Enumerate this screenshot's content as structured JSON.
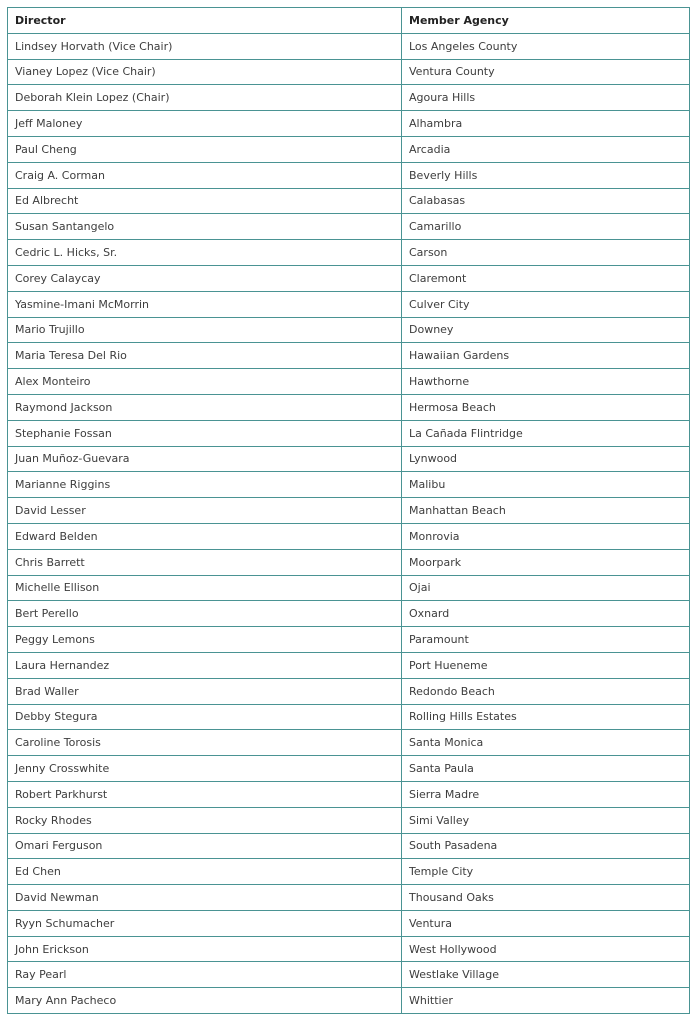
{
  "table": {
    "headers": [
      "Director",
      "Member Agency"
    ],
    "rows": [
      [
        "Lindsey Horvath (Vice Chair)",
        "Los Angeles County"
      ],
      [
        "Vianey Lopez (Vice Chair)",
        "Ventura County"
      ],
      [
        "Deborah Klein Lopez (Chair)",
        "Agoura Hills"
      ],
      [
        "Jeff Maloney",
        "Alhambra"
      ],
      [
        "Paul Cheng",
        "Arcadia"
      ],
      [
        "Craig A. Corman",
        "Beverly Hills"
      ],
      [
        "Ed Albrecht",
        "Calabasas"
      ],
      [
        "Susan Santangelo",
        "Camarillo"
      ],
      [
        "Cedric L. Hicks, Sr.",
        "Carson"
      ],
      [
        "Corey Calaycay",
        "Claremont"
      ],
      [
        "Yasmine-Imani McMorrin",
        "Culver City"
      ],
      [
        "Mario Trujillo",
        "Downey"
      ],
      [
        "Maria Teresa Del Rio",
        "Hawaiian Gardens"
      ],
      [
        "Alex Monteiro",
        "Hawthorne"
      ],
      [
        "Raymond Jackson",
        "Hermosa Beach"
      ],
      [
        "Stephanie Fossan",
        "La Cañada Flintridge"
      ],
      [
        "Juan Muñoz-Guevara",
        "Lynwood"
      ],
      [
        "Marianne Riggins",
        "Malibu"
      ],
      [
        "David Lesser",
        "Manhattan Beach"
      ],
      [
        "Edward Belden",
        "Monrovia"
      ],
      [
        "Chris Barrett",
        "Moorpark"
      ],
      [
        "Michelle Ellison",
        "Ojai"
      ],
      [
        "Bert Perello",
        "Oxnard"
      ],
      [
        "Peggy Lemons",
        "Paramount"
      ],
      [
        "Laura Hernandez",
        "Port Hueneme"
      ],
      [
        "Brad Waller",
        "Redondo Beach"
      ],
      [
        "Debby Stegura",
        "Rolling Hills Estates"
      ],
      [
        "Caroline Torosis",
        "Santa Monica"
      ],
      [
        "Jenny Crosswhite",
        "Santa Paula"
      ],
      [
        "Robert Parkhurst",
        "Sierra Madre"
      ],
      [
        "Rocky Rhodes",
        "Simi Valley"
      ],
      [
        "Omari Ferguson",
        "South Pasadena"
      ],
      [
        "Ed Chen",
        "Temple City"
      ],
      [
        "David Newman",
        "Thousand Oaks"
      ],
      [
        "Ryyn Schumacher",
        "Ventura"
      ],
      [
        "John Erickson",
        "West Hollywood"
      ],
      [
        "Ray Pearl",
        "Westlake Village"
      ],
      [
        "Mary Ann Pacheco",
        "Whittier"
      ]
    ]
  }
}
